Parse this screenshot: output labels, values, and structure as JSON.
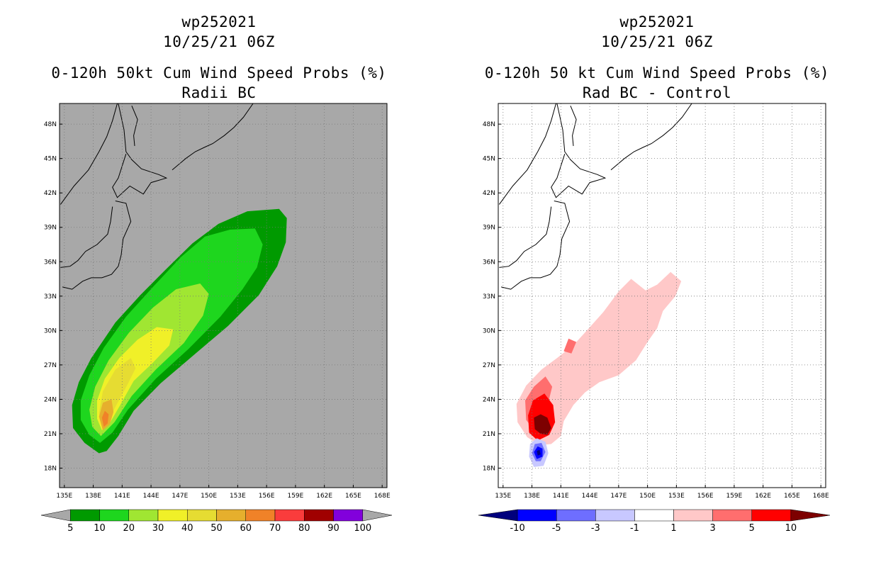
{
  "left_panel": {
    "storm_id": "wp252021",
    "datetime": "10/25/21 06Z",
    "title": "0-120h 50kt Cum Wind Speed Probs (%)",
    "subtitle": "Radii BC"
  },
  "right_panel": {
    "storm_id": "wp252021",
    "datetime": "10/25/21 06Z",
    "title": "0-120h 50 kt Cum Wind Speed Probs (%)",
    "subtitle": "Rad BC - Control"
  },
  "chart_data": [
    {
      "type": "heatmap",
      "title": "0-120h 50kt Cum Wind Speed Probs (%)",
      "subtitle": "Radii BC",
      "x_ticks": [
        "135E",
        "138E",
        "141E",
        "144E",
        "147E",
        "150E",
        "153E",
        "156E",
        "159E",
        "162E",
        "165E",
        "168E"
      ],
      "y_ticks": [
        "18N",
        "21N",
        "24N",
        "27N",
        "30N",
        "33N",
        "36N",
        "39N",
        "42N",
        "45N",
        "48N"
      ],
      "x_range": [
        134.5,
        168.5
      ],
      "y_range": [
        16.3,
        49.8
      ],
      "grid": true,
      "background_color": "#a8a8a8",
      "colorbar": {
        "levels": [
          "5",
          "10",
          "20",
          "30",
          "40",
          "50",
          "60",
          "70",
          "80",
          "90",
          "100"
        ],
        "colors": [
          "#a8a8a8",
          "#009a00",
          "#1ed61e",
          "#a0e632",
          "#f0f028",
          "#e6dc32",
          "#e6af2d",
          "#f08228",
          "#fa3c3c",
          "#a00000",
          "#8200dc",
          "#a8a8a8"
        ]
      },
      "regions": [
        {
          "level": 5,
          "color": "#009a00",
          "points": [
            [
              138.6,
              19.3
            ],
            [
              137.1,
              20.2
            ],
            [
              135.9,
              21.5
            ],
            [
              135.8,
              23.5
            ],
            [
              136.5,
              25.5
            ],
            [
              137.8,
              27.6
            ],
            [
              140.3,
              30.7
            ],
            [
              142.9,
              33.1
            ],
            [
              145.5,
              35.3
            ],
            [
              148.3,
              37.6
            ],
            [
              151.0,
              39.3
            ],
            [
              154.0,
              40.4
            ],
            [
              157.3,
              40.6
            ],
            [
              158.1,
              39.8
            ],
            [
              158.0,
              37.7
            ],
            [
              157.1,
              35.6
            ],
            [
              155.2,
              33.1
            ],
            [
              152.0,
              30.4
            ],
            [
              148.5,
              27.9
            ],
            [
              145.0,
              25.4
            ],
            [
              142.2,
              23.0
            ],
            [
              140.6,
              20.8
            ],
            [
              139.4,
              19.5
            ]
          ]
        },
        {
          "level": 10,
          "color": "#1ed61e",
          "points": [
            [
              138.7,
              20.2
            ],
            [
              137.6,
              20.9
            ],
            [
              136.7,
              22.2
            ],
            [
              136.7,
              23.9
            ],
            [
              137.6,
              26.1
            ],
            [
              139.1,
              28.5
            ],
            [
              141.4,
              31.2
            ],
            [
              144.2,
              33.8
            ],
            [
              147.1,
              36.4
            ],
            [
              149.6,
              38.2
            ],
            [
              152.2,
              38.8
            ],
            [
              154.8,
              38.9
            ],
            [
              155.6,
              37.5
            ],
            [
              155.0,
              35.5
            ],
            [
              153.5,
              33.6
            ],
            [
              151.2,
              31.2
            ],
            [
              147.9,
              28.4
            ],
            [
              144.5,
              25.8
            ],
            [
              141.6,
              23.1
            ],
            [
              140.0,
              21.1
            ]
          ]
        },
        {
          "level": 20,
          "color": "#a0e632",
          "points": [
            [
              138.8,
              20.8
            ],
            [
              137.9,
              21.6
            ],
            [
              137.6,
              23.1
            ],
            [
              138.2,
              25.1
            ],
            [
              139.6,
              27.4
            ],
            [
              141.7,
              29.8
            ],
            [
              144.2,
              32.0
            ],
            [
              146.6,
              33.6
            ],
            [
              149.1,
              34.1
            ],
            [
              150.0,
              33.2
            ],
            [
              149.4,
              31.3
            ],
            [
              147.4,
              28.9
            ],
            [
              144.5,
              26.6
            ],
            [
              142.0,
              24.3
            ],
            [
              140.2,
              22.0
            ]
          ]
        },
        {
          "level": 30,
          "color": "#f0f028",
          "points": [
            [
              138.9,
              21.3
            ],
            [
              138.4,
              22.3
            ],
            [
              138.4,
              23.9
            ],
            [
              139.2,
              25.8
            ],
            [
              140.7,
              27.6
            ],
            [
              142.6,
              29.2
            ],
            [
              144.6,
              30.3
            ],
            [
              146.3,
              30.1
            ],
            [
              145.9,
              28.7
            ],
            [
              144.2,
              27.2
            ],
            [
              142.2,
              25.6
            ],
            [
              140.8,
              23.5
            ],
            [
              139.7,
              21.9
            ]
          ]
        },
        {
          "level": 40,
          "color": "#e6dc32",
          "points": [
            [
              138.9,
              21.6
            ],
            [
              138.6,
              22.8
            ],
            [
              139.0,
              24.7
            ],
            [
              140.3,
              26.6
            ],
            [
              141.9,
              27.6
            ],
            [
              142.4,
              26.7
            ],
            [
              141.5,
              25.2
            ],
            [
              140.4,
              23.5
            ],
            [
              139.5,
              22.0
            ]
          ]
        },
        {
          "level": 50,
          "color": "#e6af2d",
          "points": [
            [
              139.0,
              21.3
            ],
            [
              138.6,
              22.5
            ],
            [
              139.0,
              23.7
            ],
            [
              139.9,
              24.0
            ],
            [
              140.1,
              22.9
            ],
            [
              139.7,
              21.8
            ]
          ]
        },
        {
          "level": 60,
          "color": "#f08228",
          "points": [
            [
              139.1,
              21.6
            ],
            [
              138.9,
              22.4
            ],
            [
              139.2,
              23.0
            ],
            [
              139.6,
              22.7
            ],
            [
              139.5,
              21.9
            ]
          ]
        }
      ]
    },
    {
      "type": "heatmap",
      "title": "0-120h 50 kt Cum Wind Speed Probs (%)",
      "subtitle": "Rad BC - Control",
      "x_ticks": [
        "135E",
        "138E",
        "141E",
        "144E",
        "147E",
        "150E",
        "153E",
        "156E",
        "159E",
        "162E",
        "165E",
        "168E"
      ],
      "y_ticks": [
        "18N",
        "21N",
        "24N",
        "27N",
        "30N",
        "33N",
        "36N",
        "39N",
        "42N",
        "45N",
        "48N"
      ],
      "x_range": [
        134.5,
        168.5
      ],
      "y_range": [
        16.3,
        49.8
      ],
      "grid": true,
      "background_color": "#ffffff",
      "colorbar": {
        "levels": [
          "-10",
          "-5",
          "-3",
          "-1",
          "1",
          "3",
          "5",
          "10"
        ],
        "colors": [
          "#00007d",
          "#0000ff",
          "#6e6eff",
          "#c8c8ff",
          "#ffffff",
          "#ffc8c8",
          "#ff6e6e",
          "#ff0000",
          "#7d0000"
        ]
      },
      "regions": [
        {
          "level": 1,
          "color": "#ffc8c8",
          "points": [
            [
              138.8,
              20.0
            ],
            [
              137.5,
              20.7
            ],
            [
              136.5,
              22.0
            ],
            [
              136.4,
              23.6
            ],
            [
              137.4,
              25.2
            ],
            [
              139.0,
              26.6
            ],
            [
              140.6,
              27.6
            ],
            [
              142.4,
              28.8
            ],
            [
              143.8,
              30.1
            ],
            [
              145.4,
              31.6
            ],
            [
              147.0,
              33.4
            ],
            [
              148.3,
              34.5
            ],
            [
              149.8,
              33.5
            ],
            [
              151.0,
              34.0
            ],
            [
              152.4,
              35.1
            ],
            [
              153.5,
              34.3
            ],
            [
              152.9,
              33.0
            ],
            [
              151.6,
              31.7
            ],
            [
              151.0,
              30.2
            ],
            [
              150.0,
              29.0
            ],
            [
              148.8,
              27.4
            ],
            [
              147.0,
              26.1
            ],
            [
              145.0,
              25.5
            ],
            [
              143.5,
              24.6
            ],
            [
              142.3,
              23.5
            ],
            [
              141.3,
              22.1
            ],
            [
              141.0,
              20.8
            ],
            [
              140.0,
              20.1
            ]
          ]
        },
        {
          "level": 3,
          "color": "#ff6e6e",
          "points": [
            [
              138.5,
              21.0
            ],
            [
              137.4,
              22.2
            ],
            [
              137.3,
              23.9
            ],
            [
              138.2,
              25.1
            ],
            [
              139.4,
              26.0
            ],
            [
              140.1,
              25.1
            ],
            [
              139.6,
              23.4
            ],
            [
              139.9,
              22.1
            ],
            [
              139.4,
              21.1
            ]
          ]
        },
        {
          "level": 3,
          "color": "#ff6e6e",
          "points": [
            [
              141.3,
              28.2
            ],
            [
              141.8,
              29.3
            ],
            [
              142.6,
              29.0
            ],
            [
              142.1,
              28.0
            ]
          ]
        },
        {
          "level": 5,
          "color": "#ff0000",
          "points": [
            [
              138.6,
              20.4
            ],
            [
              137.7,
              21.1
            ],
            [
              137.6,
              22.6
            ],
            [
              138.1,
              23.9
            ],
            [
              139.3,
              24.5
            ],
            [
              140.2,
              23.5
            ],
            [
              140.4,
              22.0
            ],
            [
              139.8,
              20.9
            ]
          ]
        },
        {
          "level": 10,
          "color": "#7d0000",
          "points": [
            [
              138.3,
              21.4
            ],
            [
              138.2,
              22.4
            ],
            [
              138.9,
              22.7
            ],
            [
              139.6,
              22.4
            ],
            [
              140.0,
              21.5
            ],
            [
              139.6,
              20.9
            ],
            [
              138.9,
              21.0
            ]
          ]
        },
        {
          "level": -1,
          "color": "#c8c8ff",
          "points": [
            [
              138.2,
              18.1
            ],
            [
              137.7,
              19.0
            ],
            [
              137.8,
              20.1
            ],
            [
              138.5,
              20.6
            ],
            [
              139.4,
              20.3
            ],
            [
              139.7,
              19.3
            ],
            [
              139.2,
              18.2
            ]
          ]
        },
        {
          "level": -3,
          "color": "#6e6eff",
          "points": [
            [
              138.4,
              18.6
            ],
            [
              138.0,
              19.3
            ],
            [
              138.3,
              20.1
            ],
            [
              139.0,
              20.2
            ],
            [
              139.4,
              19.4
            ],
            [
              138.9,
              18.6
            ]
          ]
        },
        {
          "level": -5,
          "color": "#0000ff",
          "points": [
            [
              138.5,
              18.8
            ],
            [
              138.2,
              19.4
            ],
            [
              138.6,
              19.9
            ],
            [
              139.1,
              19.7
            ],
            [
              139.1,
              19.0
            ]
          ]
        },
        {
          "level": -10,
          "color": "#00007d",
          "points": [
            [
              138.6,
              19.1
            ],
            [
              138.5,
              19.5
            ],
            [
              138.8,
              19.6
            ],
            [
              138.9,
              19.2
            ]
          ]
        }
      ]
    }
  ]
}
